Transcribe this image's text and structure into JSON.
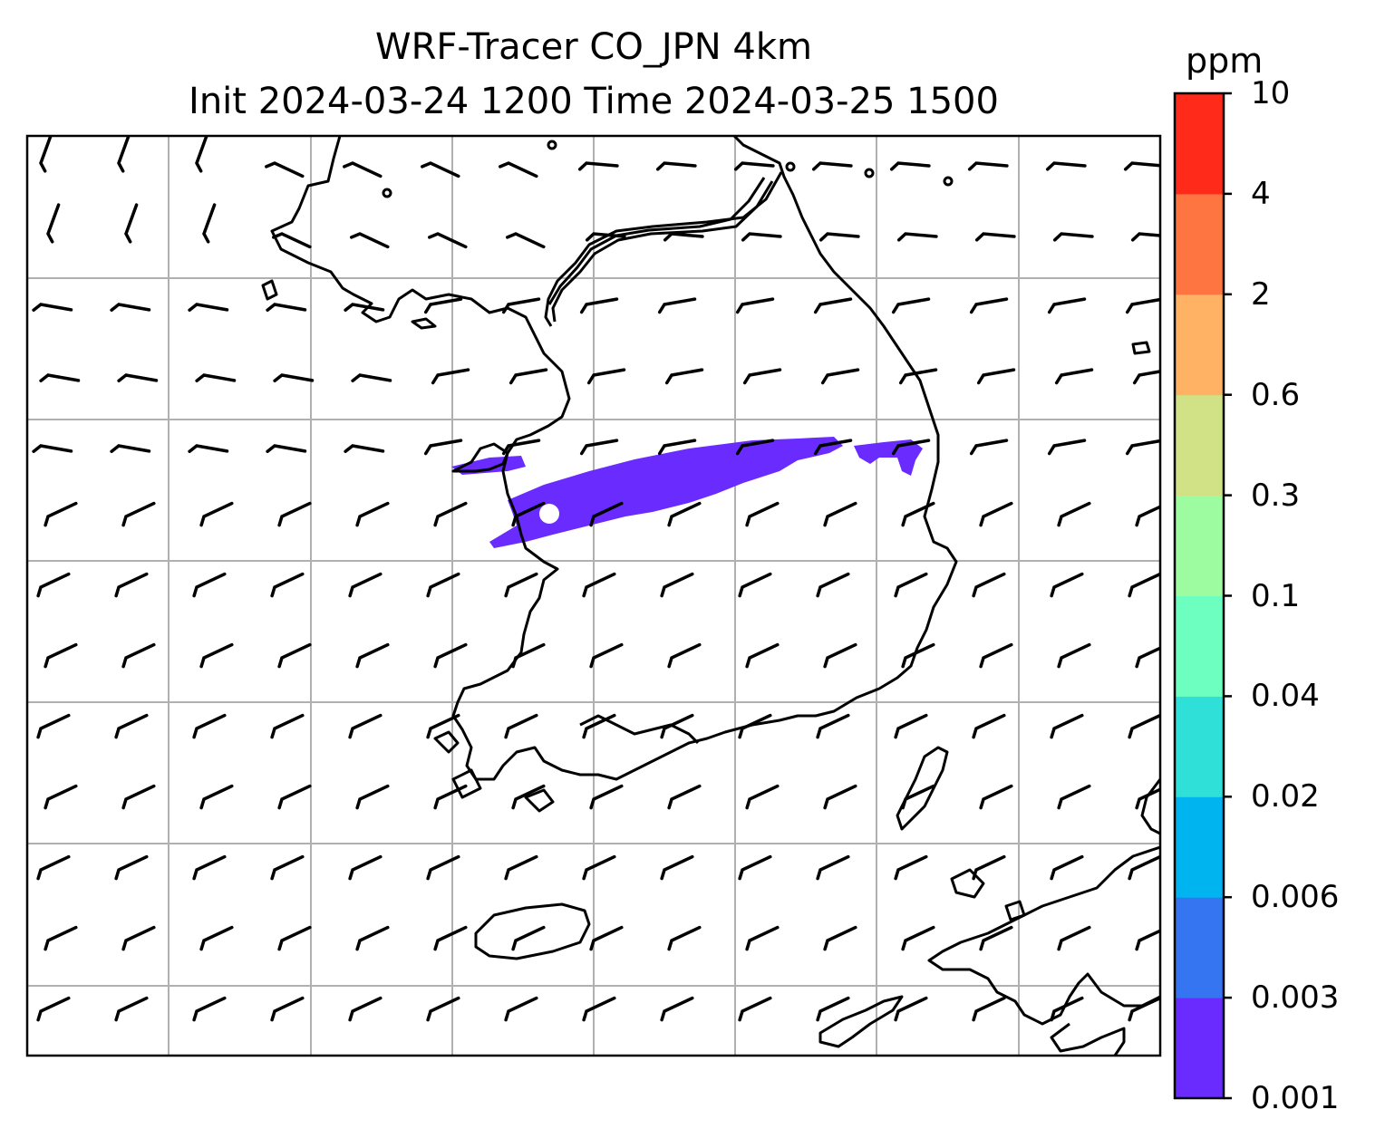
{
  "title": {
    "line1": "WRF-Tracer CO_JPN 4km",
    "line2": "Init 2024-03-24 1200 Time 2024-03-25 1500"
  },
  "colorbar": {
    "unit": "ppm",
    "levels": [
      "0.001",
      "0.003",
      "0.006",
      "0.02",
      "0.04",
      "0.1",
      "0.3",
      "0.6",
      "2",
      "4",
      "10"
    ],
    "colors": [
      "#6a2bff",
      "#3575f2",
      "#00b4f0",
      "#2ee0d8",
      "#6cffc0",
      "#9dfca0",
      "#d1e286",
      "#ffb263",
      "#ff7542",
      "#ff2a1a"
    ]
  },
  "map": {
    "plume_color": "#6a2bff",
    "gridline_color": "#b0b0b0",
    "barb_color": "#000000"
  }
}
